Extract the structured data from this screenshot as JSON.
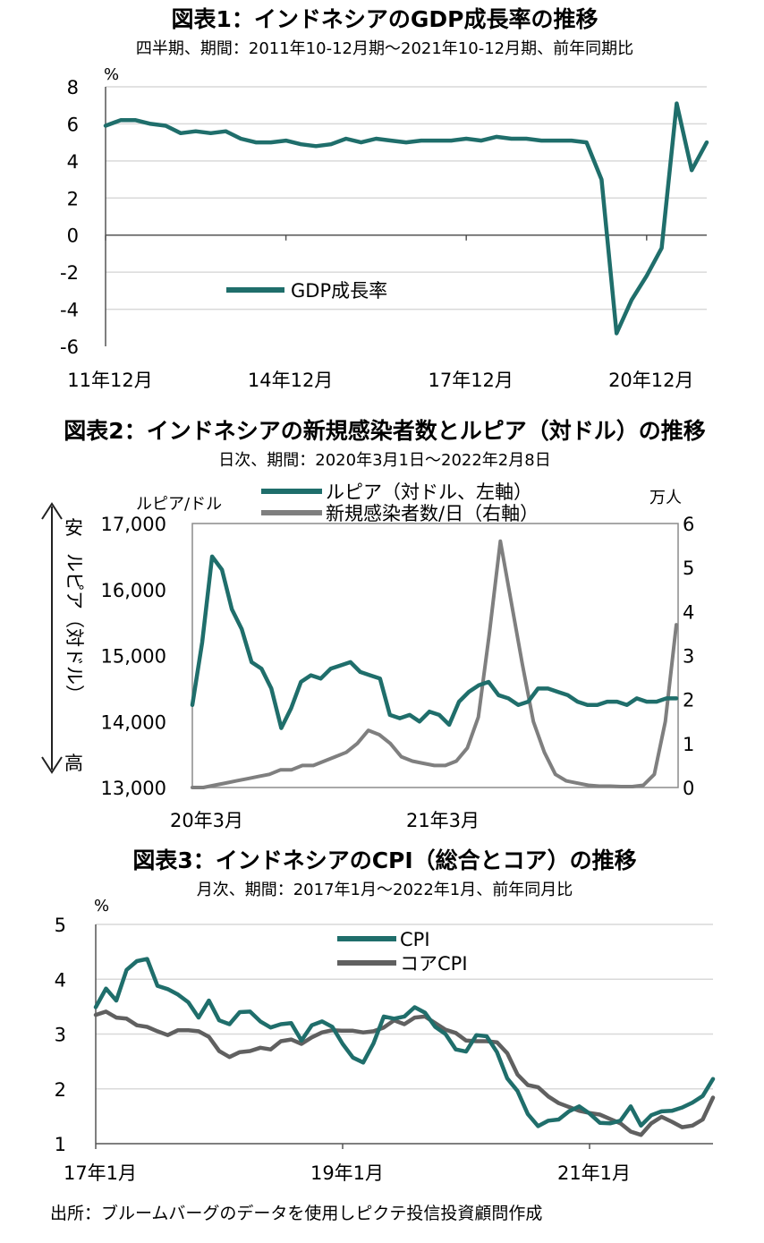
{
  "colors": {
    "teal": "#1f6e6b",
    "gray": "#7f7f7f",
    "darkgray": "#606060",
    "grid": "#d9d9d9",
    "axis": "#555555",
    "text": "#222222"
  },
  "chart_data": [
    {
      "type": "line",
      "title": "図表1：インドネシアのGDP成長率の推移",
      "subtitle": "四半期、期間：2011年10-12月期～2021年10-12月期、前年同期比",
      "unit": "%",
      "ylim": [
        -6,
        8
      ],
      "yticks": [
        "8",
        "6",
        "4",
        "2",
        "0",
        "-2",
        "-4",
        "-6"
      ],
      "xticks": [
        "11年12月",
        "14年12月",
        "17年12月",
        "20年12月"
      ],
      "grid": true,
      "legend_position": "lower-left",
      "series": [
        {
          "name": "GDP成長率",
          "color": "#1f6e6b",
          "values": [
            5.9,
            6.2,
            6.2,
            6.0,
            5.9,
            5.5,
            5.6,
            5.5,
            5.6,
            5.2,
            5.0,
            5.0,
            5.1,
            4.9,
            4.8,
            4.9,
            5.2,
            5.0,
            5.2,
            5.1,
            5.0,
            5.1,
            5.1,
            5.1,
            5.2,
            5.1,
            5.3,
            5.2,
            5.2,
            5.1,
            5.1,
            5.1,
            5.0,
            3.0,
            -5.3,
            -3.5,
            -2.2,
            -0.7,
            7.1,
            3.5,
            5.0
          ]
        }
      ]
    },
    {
      "type": "line",
      "title": "図表2：インドネシアの新規感染者数とルピア（対ドル）の推移",
      "subtitle": "日次、期間：2020年3月1日～2022年2月8日",
      "ylabel_left": "ルピア/ドル",
      "ylabel_right": "万人",
      "ylim_left": [
        13000,
        17000
      ],
      "ylim_right": [
        0,
        6
      ],
      "yticks_left": [
        "17,000",
        "16,000",
        "15,000",
        "14,000",
        "13,000"
      ],
      "yticks_right": [
        "6",
        "5",
        "4",
        "3",
        "2",
        "1",
        "0"
      ],
      "xticks": [
        "20年3月",
        "21年3月"
      ],
      "side_annotation": {
        "top": "安",
        "middle": "ルピア（対ドル）",
        "bottom": "高"
      },
      "grid": false,
      "legend_position": "top-center",
      "series": [
        {
          "name": "ルピア（対ドル、左軸）",
          "color": "#1f6e6b",
          "axis": "left",
          "values": [
            14250,
            15200,
            16500,
            16300,
            15700,
            15400,
            14900,
            14800,
            14500,
            13900,
            14200,
            14600,
            14700,
            14650,
            14800,
            14850,
            14900,
            14750,
            14700,
            14650,
            14100,
            14050,
            14100,
            14000,
            14150,
            14100,
            13950,
            14300,
            14450,
            14550,
            14600,
            14400,
            14350,
            14250,
            14300,
            14500,
            14500,
            14450,
            14400,
            14300,
            14250,
            14250,
            14300,
            14300,
            14250,
            14350,
            14300,
            14300,
            14350,
            14350
          ]
        },
        {
          "name": "新規感染者数/日（右軸）",
          "color": "#7f7f7f",
          "axis": "right",
          "values": [
            0,
            0,
            0.05,
            0.1,
            0.15,
            0.2,
            0.25,
            0.3,
            0.4,
            0.4,
            0.5,
            0.5,
            0.6,
            0.7,
            0.8,
            1.0,
            1.3,
            1.2,
            1.0,
            0.7,
            0.6,
            0.55,
            0.5,
            0.5,
            0.6,
            0.9,
            1.6,
            3.5,
            5.6,
            4.2,
            2.8,
            1.5,
            0.8,
            0.3,
            0.15,
            0.1,
            0.05,
            0.03,
            0.03,
            0.02,
            0.02,
            0.05,
            0.3,
            1.5,
            3.7
          ]
        }
      ]
    },
    {
      "type": "line",
      "title": "図表3：インドネシアのCPI（総合とコア）の推移",
      "subtitle": "月次、期間：2017年1月～2022年1月、前年同月比",
      "unit": "%",
      "ylim": [
        1,
        5
      ],
      "yticks": [
        "5",
        "4",
        "3",
        "2",
        "1"
      ],
      "xticks": [
        "17年1月",
        "19年1月",
        "21年1月"
      ],
      "grid": true,
      "legend_position": "top-center",
      "series": [
        {
          "name": "CPI",
          "color": "#1f6e6b",
          "values": [
            3.49,
            3.83,
            3.61,
            4.17,
            4.33,
            4.37,
            3.88,
            3.82,
            3.72,
            3.58,
            3.3,
            3.61,
            3.25,
            3.18,
            3.4,
            3.41,
            3.23,
            3.12,
            3.18,
            3.2,
            2.88,
            3.16,
            3.23,
            3.13,
            2.82,
            2.57,
            2.48,
            2.83,
            3.32,
            3.28,
            3.32,
            3.49,
            3.39,
            3.13,
            3.0,
            2.72,
            2.68,
            2.98,
            2.96,
            2.67,
            2.19,
            1.96,
            1.54,
            1.32,
            1.42,
            1.44,
            1.59,
            1.68,
            1.55,
            1.38,
            1.37,
            1.42,
            1.68,
            1.33,
            1.52,
            1.59,
            1.6,
            1.66,
            1.75,
            1.87,
            2.18
          ]
        },
        {
          "name": "コアCPI",
          "color": "#606060",
          "values": [
            3.35,
            3.41,
            3.3,
            3.28,
            3.16,
            3.13,
            3.05,
            2.98,
            3.07,
            3.07,
            3.05,
            2.95,
            2.69,
            2.58,
            2.67,
            2.69,
            2.75,
            2.72,
            2.87,
            2.9,
            2.82,
            2.94,
            3.03,
            3.07,
            3.06,
            3.06,
            3.03,
            3.05,
            3.12,
            3.25,
            3.18,
            3.3,
            3.32,
            3.2,
            3.08,
            3.02,
            2.88,
            2.87,
            2.87,
            2.85,
            2.65,
            2.26,
            2.07,
            2.03,
            1.86,
            1.74,
            1.67,
            1.6,
            1.56,
            1.53,
            1.45,
            1.37,
            1.22,
            1.16,
            1.37,
            1.49,
            1.4,
            1.3,
            1.33,
            1.44,
            1.84
          ]
        }
      ]
    }
  ],
  "source": "出所：ブルームバーグのデータを使用しピクテ投信投資顧問作成"
}
